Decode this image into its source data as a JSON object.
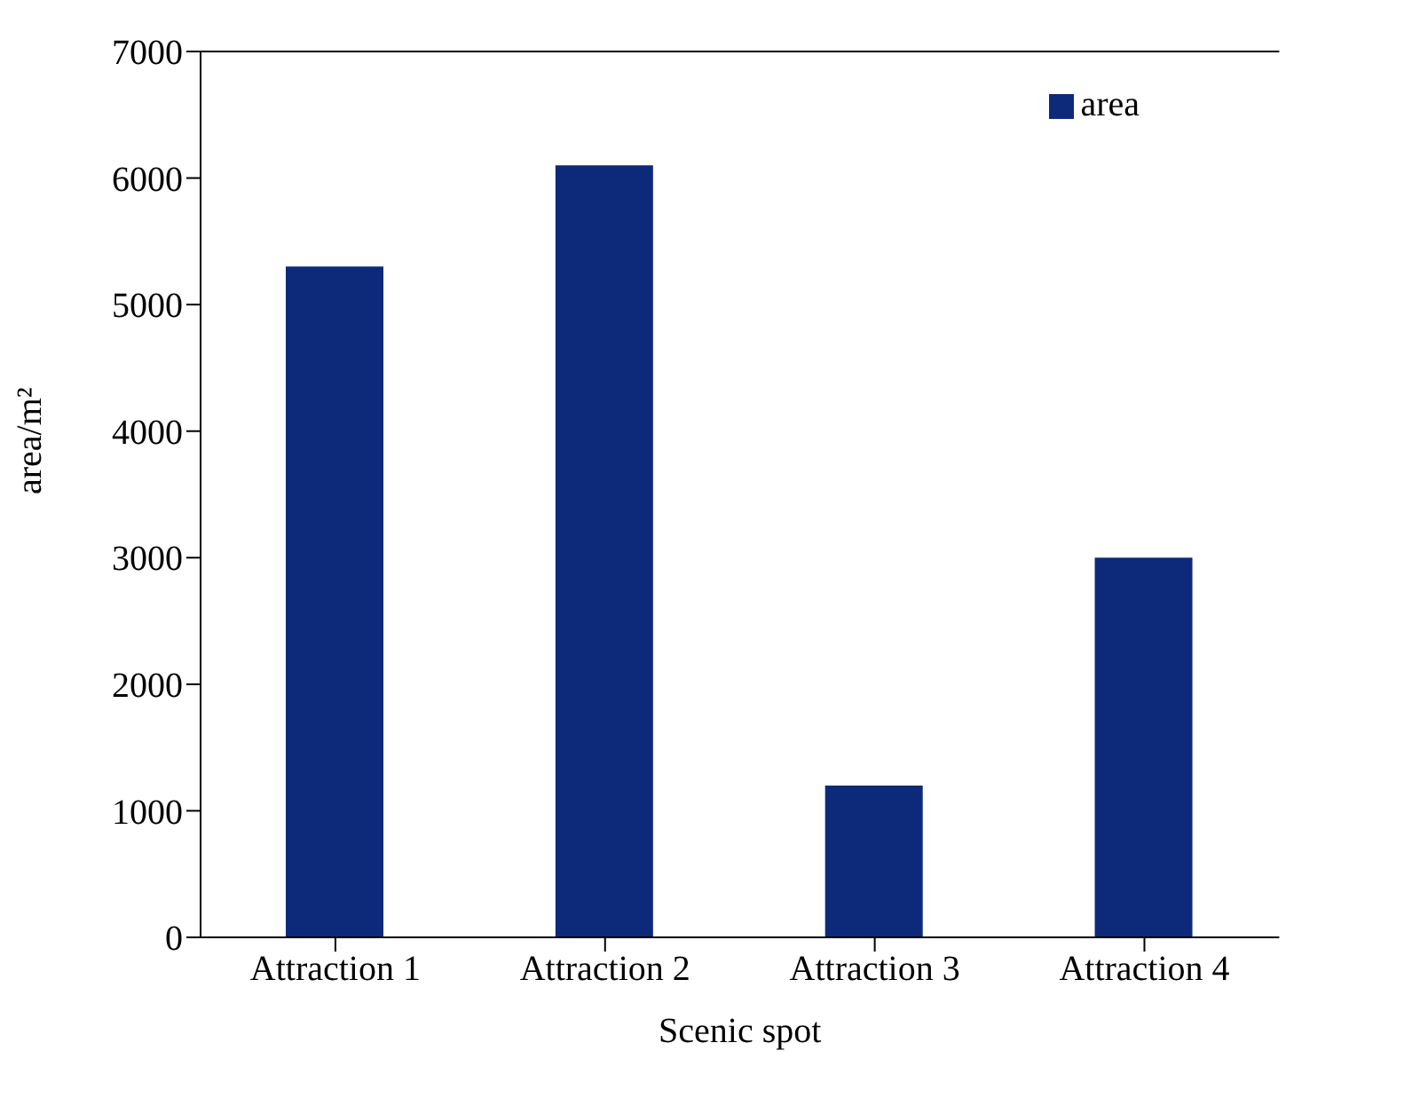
{
  "chart_data": {
    "type": "bar",
    "xlabel": "Scenic spot",
    "ylabel": "area/m²",
    "categories": [
      "Attraction 1",
      "Attraction 2",
      "Attraction 3",
      "Attraction 4"
    ],
    "series": [
      {
        "name": "area",
        "color": "#0d2a7a",
        "values": [
          5300,
          6100,
          1200,
          3000
        ]
      }
    ],
    "ylim": [
      0,
      7000
    ],
    "yticks": [
      0,
      1000,
      2000,
      3000,
      4000,
      5000,
      6000,
      7000
    ],
    "grid": false,
    "legend": "top right"
  }
}
